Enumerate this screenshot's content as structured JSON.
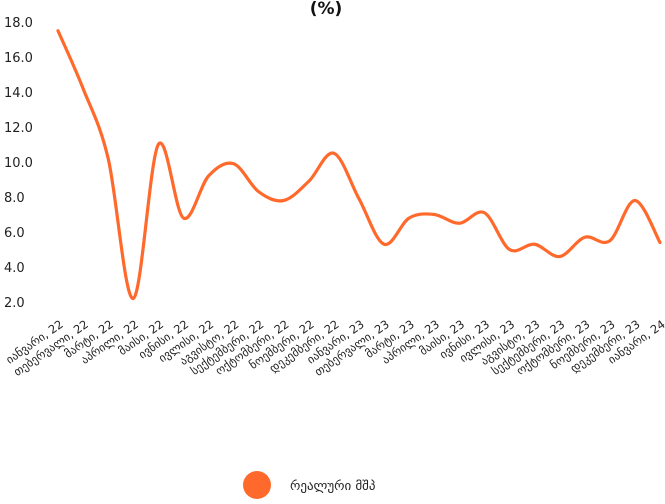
{
  "chart_data": {
    "type": "line",
    "title": "(%)",
    "xlabel": "",
    "ylabel": "",
    "ylim": [
      2.0,
      18.0
    ],
    "y_ticks": [
      "18.0",
      "16.0",
      "14.0",
      "12.0",
      "10.0",
      "8.0",
      "6.0",
      "4.0",
      "2.0"
    ],
    "grid": false,
    "legend_position": "bottom",
    "categories": [
      "იანვარი, 22",
      "თებერვალი, 22",
      "მარტი, 22",
      "აპრილი, 22",
      "მაისი, 22",
      "ივნისი, 22",
      "ივლისი, 22",
      "აგვისტო, 22",
      "სექტემბერი, 22",
      "ოქტომბერი, 22",
      "ნოემბერი, 22",
      "დეკემბერი, 22",
      "იანვარი, 23",
      "თებერვალი, 23",
      "მარტი, 23",
      "აპრილი, 23",
      "მაისი, 23",
      "ივნისი, 23",
      "ივლისი, 23",
      "აგვისტო, 23",
      "სექტემბერი, 23",
      "ოქტომბერი, 23",
      "ნოემბერი, 23",
      "დეკემბერი, 23",
      "იანვარი, 24"
    ],
    "series": [
      {
        "name": "რეალური მშპ",
        "color": "#FF6A2C",
        "values": [
          17.5,
          14.2,
          10.2,
          2.2,
          11.0,
          6.8,
          9.2,
          9.9,
          8.3,
          7.8,
          8.9,
          10.5,
          7.9,
          5.3,
          6.8,
          7.0,
          6.5,
          7.1,
          5.0,
          5.3,
          4.6,
          5.7,
          5.5,
          7.8,
          5.4
        ]
      }
    ]
  }
}
